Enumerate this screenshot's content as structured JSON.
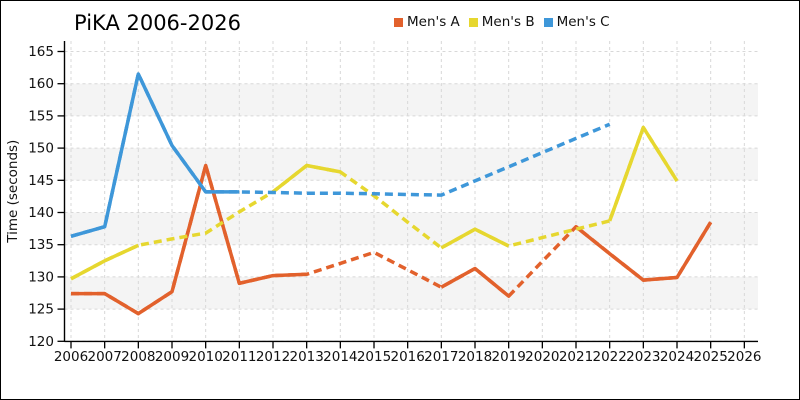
{
  "title": "PiKA 2006-2026",
  "legend": [
    {
      "label": "Men's A",
      "color": "#e2612c"
    },
    {
      "label": "Men's B",
      "color": "#e6d72f"
    },
    {
      "label": "Men's C",
      "color": "#3e97d9"
    }
  ],
  "chart_data": {
    "type": "line",
    "title": "PiKA 2006-2026",
    "xlabel": "",
    "ylabel": "Time (seconds)",
    "xlim": [
      2006,
      2026
    ],
    "ylim": [
      120,
      165
    ],
    "x_ticks": [
      2006,
      2007,
      2008,
      2009,
      2010,
      2011,
      2012,
      2013,
      2014,
      2015,
      2016,
      2017,
      2018,
      2019,
      2020,
      2021,
      2022,
      2023,
      2024,
      2025,
      2026
    ],
    "y_ticks": [
      120,
      125,
      130,
      135,
      140,
      145,
      150,
      155,
      160,
      165
    ],
    "grid": true,
    "grid_color": "#d8d8d8",
    "band_color": "#f4f4f4",
    "axis_color": "#000000",
    "background": "#ffffff",
    "shaded_bands": [
      [
        125,
        130
      ],
      [
        135,
        140
      ],
      [
        145,
        150
      ],
      [
        155,
        160
      ]
    ],
    "legend_position": "top",
    "series": [
      {
        "name": "Men's A",
        "color": "#e2612c",
        "x": [
          2006,
          2007,
          2008,
          2009,
          2010,
          2011,
          2012,
          2013,
          2014,
          2015,
          2016,
          2017,
          2018,
          2019,
          2020,
          2021,
          2022,
          2023,
          2024,
          2025
        ],
        "values": [
          127.4,
          127.4,
          124.3,
          127.7,
          147.3,
          129.0,
          130.2,
          130.4,
          132.1,
          133.8,
          131.1,
          128.4,
          131.3,
          127.0,
          132.4,
          137.8,
          133.6,
          129.5,
          129.9,
          138.5
        ],
        "solid_segments": [
          [
            2006,
            2013
          ],
          [
            2017,
            2019
          ],
          [
            2021,
            2025
          ]
        ],
        "dashed_segments": [
          [
            2013,
            2017
          ],
          [
            2019,
            2021
          ]
        ]
      },
      {
        "name": "Men's B",
        "color": "#e6d72f",
        "x": [
          2006,
          2007,
          2008,
          2009,
          2010,
          2011,
          2012,
          2013,
          2014,
          2015,
          2016,
          2017,
          2018,
          2019,
          2020,
          2021,
          2022,
          2023,
          2024
        ],
        "values": [
          129.7,
          132.5,
          134.9,
          135.9,
          136.8,
          140.1,
          143.2,
          147.3,
          146.3,
          142.6,
          138.5,
          134.5,
          137.4,
          134.8,
          136.1,
          137.4,
          138.7,
          153.2,
          144.9
        ],
        "solid_segments": [
          [
            2006,
            2008
          ],
          [
            2012,
            2014
          ],
          [
            2017,
            2019
          ],
          [
            2022,
            2024
          ]
        ],
        "dashed_segments": [
          [
            2008,
            2012
          ],
          [
            2014,
            2017
          ],
          [
            2019,
            2022
          ]
        ]
      },
      {
        "name": "Men's C",
        "color": "#3e97d9",
        "x": [
          2006,
          2007,
          2008,
          2009,
          2010,
          2011,
          2012,
          2013,
          2014,
          2015,
          2016,
          2017,
          2018,
          2019,
          2020,
          2021,
          2022
        ],
        "values": [
          136.3,
          137.8,
          161.5,
          150.4,
          143.2,
          143.2,
          143.1,
          143.0,
          143.0,
          142.9,
          142.8,
          142.7,
          144.9,
          147.1,
          149.3,
          151.5,
          153.7
        ],
        "solid_segments": [
          [
            2006,
            2011
          ]
        ],
        "dashed_segments": [
          [
            2011,
            2022
          ]
        ]
      }
    ]
  }
}
